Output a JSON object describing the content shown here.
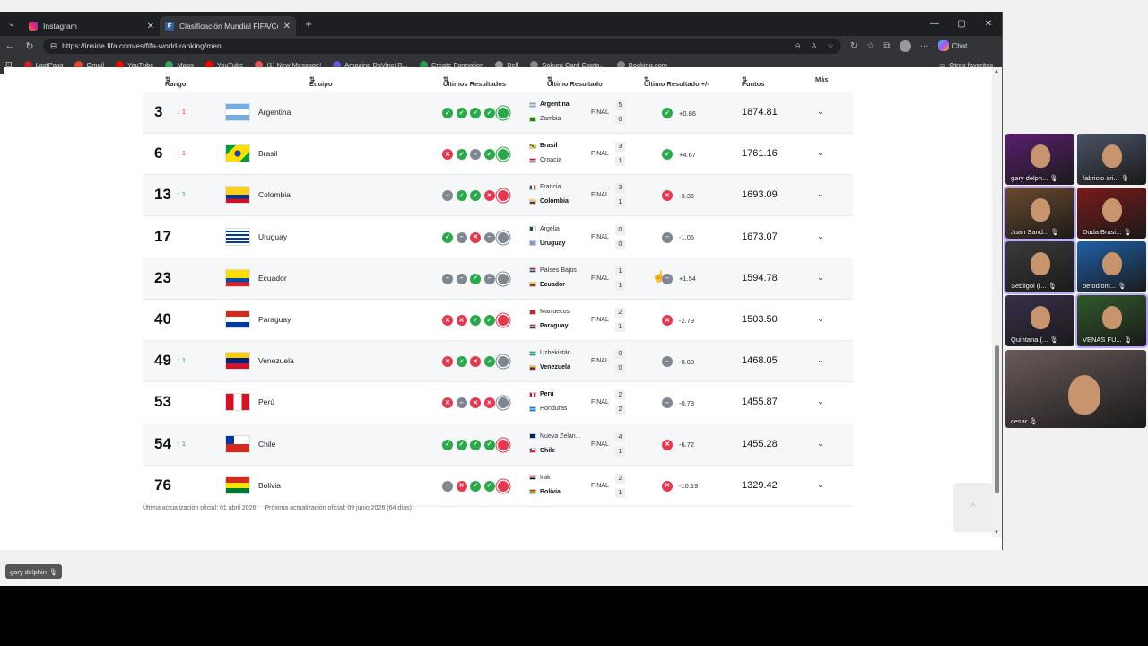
{
  "browser": {
    "tabs": [
      {
        "title": "Instagram",
        "active": false
      },
      {
        "title": "Clasificación Mundial FIFA/Coca-C",
        "active": true
      }
    ],
    "url": "https://inside.fifa.com/es/fifa-world-ranking/men",
    "chat_label": "Chat",
    "bookmarks": [
      {
        "label": "LastPass",
        "color": "#cc2029"
      },
      {
        "label": "Gmail",
        "color": "#ea4335"
      },
      {
        "label": "YouTube",
        "color": "#ff0000"
      },
      {
        "label": "Maps",
        "color": "#34a853"
      },
      {
        "label": "YouTube",
        "color": "#ff0000"
      },
      {
        "label": "(1) New Message!",
        "color": "#e55"
      },
      {
        "label": "Amazing DaVinci R...",
        "color": "#5b5bd6"
      },
      {
        "label": "Create Formation",
        "color": "#2a9d4a"
      },
      {
        "label": "Dell",
        "color": "#999"
      },
      {
        "label": "Sakura Card Capto...",
        "color": "#888"
      },
      {
        "label": "Booking.com",
        "color": "#888"
      }
    ],
    "other_favorites": "Otros favoritos"
  },
  "table": {
    "headers": {
      "rank": "Rango",
      "team": "Equipo",
      "last_results": "Ultimos Resultados",
      "last_result": "Ultimo Resultado",
      "last_result_pm": "Ultimo Resultado +/-",
      "points": "Puntos",
      "more": "Más"
    },
    "rows": [
      {
        "rank": "3",
        "move": "↓ 1",
        "dir": "down",
        "team": "Argentina",
        "flag": "arg",
        "results": [
          "W",
          "W",
          "W",
          "W",
          "W"
        ],
        "home": "Argentina",
        "home_flag": "arg",
        "home_score": "5",
        "away": "Zambia",
        "away_flag": "zam",
        "away_score": "0",
        "winner": "home",
        "status": "FINAL",
        "delta_type": "W",
        "delta": "+0.86",
        "points": "1874.81"
      },
      {
        "rank": "6",
        "move": "↓ 1",
        "dir": "down",
        "team": "Brasil",
        "flag": "bra",
        "results": [
          "L",
          "W",
          "D",
          "W",
          "W"
        ],
        "home": "Brasil",
        "home_flag": "bra",
        "home_score": "3",
        "away": "Croacia",
        "away_flag": "cro",
        "away_score": "1",
        "winner": "home",
        "status": "FINAL",
        "delta_type": "W",
        "delta": "+4.67",
        "points": "1761.16"
      },
      {
        "rank": "13",
        "move": "↑ 1",
        "dir": "up",
        "team": "Colombia",
        "flag": "col",
        "results": [
          "D",
          "W",
          "W",
          "L",
          "L"
        ],
        "home": "Francia",
        "home_flag": "fra",
        "home_score": "3",
        "away": "Colombia",
        "away_flag": "col",
        "away_score": "1",
        "winner": "away",
        "status": "FINAL",
        "delta_type": "L",
        "delta": "-3.36",
        "points": "1693.09"
      },
      {
        "rank": "17",
        "move": "",
        "dir": "",
        "team": "Uruguay",
        "flag": "uru",
        "results": [
          "W",
          "D",
          "L",
          "D",
          "D"
        ],
        "home": "Argelia",
        "home_flag": "alg",
        "home_score": "0",
        "away": "Uruguay",
        "away_flag": "uru",
        "away_score": "0",
        "winner": "away",
        "status": "FINAL",
        "delta_type": "D",
        "delta": "-1.05",
        "points": "1673.07"
      },
      {
        "rank": "23",
        "move": "",
        "dir": "",
        "team": "Ecuador",
        "flag": "ecu",
        "results": [
          "D",
          "D",
          "W",
          "D",
          "D"
        ],
        "home": "Países Bajos",
        "home_flag": "ned",
        "home_score": "1",
        "away": "Ecuador",
        "away_flag": "ecu",
        "away_score": "1",
        "winner": "away",
        "status": "FINAL",
        "delta_type": "D",
        "delta": "+1.54",
        "points": "1594.78"
      },
      {
        "rank": "40",
        "move": "",
        "dir": "",
        "team": "Paraguay",
        "flag": "par",
        "results": [
          "L",
          "L",
          "W",
          "W",
          "L"
        ],
        "home": "Marruecos",
        "home_flag": "mar",
        "home_score": "2",
        "away": "Paraguay",
        "away_flag": "par",
        "away_score": "1",
        "winner": "away",
        "status": "FINAL",
        "delta_type": "L",
        "delta": "-2.79",
        "points": "1503.50"
      },
      {
        "rank": "49",
        "move": "↑ 1",
        "dir": "up",
        "team": "Venezuela",
        "flag": "ven",
        "results": [
          "L",
          "W",
          "L",
          "W",
          "D"
        ],
        "home": "Uzbekistán",
        "home_flag": "uzb",
        "home_score": "0",
        "away": "Venezuela",
        "away_flag": "ven",
        "away_score": "0",
        "winner": "away",
        "status": "FINAL",
        "delta_type": "D",
        "delta": "-0.03",
        "points": "1468.05"
      },
      {
        "rank": "53",
        "move": "",
        "dir": "",
        "team": "Perú",
        "flag": "per",
        "results": [
          "L",
          "D",
          "L",
          "L",
          "D"
        ],
        "home": "Perú",
        "home_flag": "per",
        "home_score": "2",
        "away": "Honduras",
        "away_flag": "hon",
        "away_score": "2",
        "winner": "home",
        "status": "FINAL",
        "delta_type": "D",
        "delta": "-0.73",
        "points": "1455.87"
      },
      {
        "rank": "54",
        "move": "↑ 1",
        "dir": "up",
        "team": "Chile",
        "flag": "chi",
        "results": [
          "W",
          "W",
          "W",
          "W",
          "L"
        ],
        "home": "Nueva Zelan...",
        "home_flag": "nzl",
        "home_score": "4",
        "away": "Chile",
        "away_flag": "chi",
        "away_score": "1",
        "winner": "away",
        "status": "FINAL",
        "delta_type": "L",
        "delta": "-6.72",
        "points": "1455.28"
      },
      {
        "rank": "76",
        "move": "",
        "dir": "",
        "team": "Bolivia",
        "flag": "bol",
        "results": [
          "D",
          "L",
          "W",
          "W",
          "L"
        ],
        "home": "Irak",
        "home_flag": "irq",
        "home_score": "2",
        "away": "Bolivia",
        "away_flag": "bol",
        "away_score": "1",
        "winner": "away",
        "status": "FINAL",
        "delta_type": "L",
        "delta": "-10.19",
        "points": "1329.42"
      }
    ],
    "footer": {
      "last_update_label": "Última actualización oficial:",
      "last_update": "01 abril 2026",
      "next_update_label": "Próxima actualización oficial:",
      "next_update": "09 junio 2026 (64 días)"
    }
  },
  "participants": [
    {
      "name": "gary delph...",
      "bg": "#5a1e6e"
    },
    {
      "name": "fabricio ari...",
      "bg": "#4a5366"
    },
    {
      "name": "Juan Sand...",
      "bg": "#6b4a2e",
      "hl": true
    },
    {
      "name": "Duda Brasi...",
      "bg": "#7a1a1a"
    },
    {
      "name": "Sebiigol (I...",
      "bg": "#3b3b3b",
      "hl": true
    },
    {
      "name": "betodiom...",
      "bg": "#1f5fa8"
    },
    {
      "name": "Quintana (...",
      "bg": "#3a2f4a"
    },
    {
      "name": "VENAS FU...",
      "bg": "#2f5a2a",
      "hl": true
    },
    {
      "name": "cesar",
      "bg": "#6a5a5a",
      "wide": true
    }
  ],
  "active_speaker": "gary delphin"
}
